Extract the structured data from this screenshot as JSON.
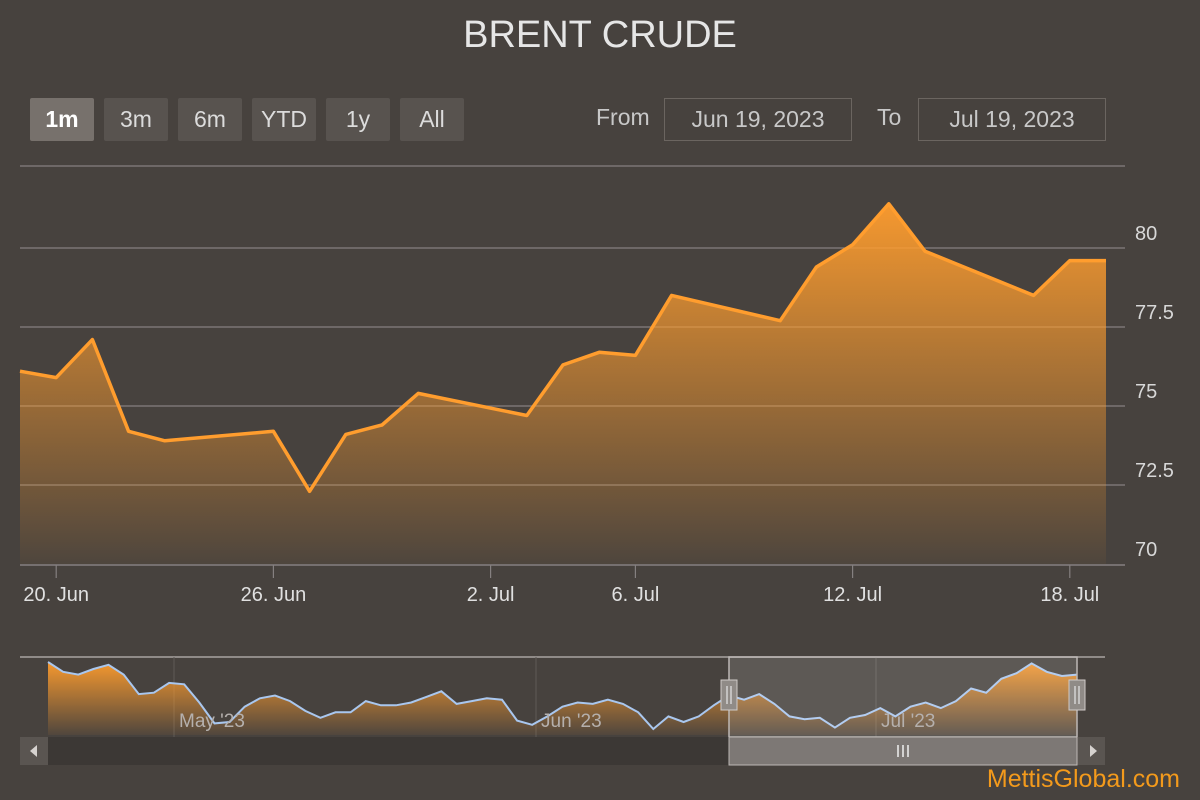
{
  "title": "BRENT CRUDE",
  "range_selector": {
    "buttons": [
      "1m",
      "3m",
      "6m",
      "YTD",
      "1y",
      "All"
    ],
    "active": "1m",
    "from_label": "From",
    "from_value": "Jun 19, 2023",
    "to_label": "To",
    "to_value": "Jul 19, 2023"
  },
  "watermark": "MettisGlobal.com",
  "colors": {
    "background": "#47423e",
    "series_line": "#ff9d2e",
    "navigator_line": "#a9c7ef",
    "grid": "#858080"
  },
  "chart_data": {
    "type": "area",
    "title": "BRENT CRUDE",
    "y_ticks": [
      "70",
      "72.5",
      "75",
      "77.5",
      "80"
    ],
    "ylim": [
      70,
      82.5
    ],
    "x_tick_labels": [
      "20. Jun",
      "26. Jun",
      "2. Jul",
      "6. Jul",
      "12. Jul",
      "18. Jul"
    ],
    "grid": true,
    "series": [
      {
        "x": [
          "2023-06-19",
          "2023-06-20",
          "2023-06-21",
          "2023-06-22",
          "2023-06-23",
          "2023-06-26",
          "2023-06-27",
          "2023-06-28",
          "2023-06-29",
          "2023-06-30",
          "2023-07-03",
          "2023-07-04",
          "2023-07-05",
          "2023-07-06",
          "2023-07-07",
          "2023-07-10",
          "2023-07-11",
          "2023-07-12",
          "2023-07-13",
          "2023-07-14",
          "2023-07-17",
          "2023-07-18",
          "2023-07-19"
        ],
        "values": [
          76.1,
          75.9,
          77.1,
          74.2,
          73.9,
          74.2,
          72.3,
          74.1,
          74.4,
          75.4,
          74.7,
          76.3,
          76.7,
          76.6,
          78.5,
          77.7,
          79.4,
          80.1,
          81.4,
          79.9,
          78.5,
          79.6,
          79.6
        ]
      }
    ]
  },
  "navigator": {
    "labels": [
      "May '23",
      "Jun '23",
      "Jul '23"
    ],
    "values": [
      78.5,
      77.8,
      77.6,
      78.0,
      78.3,
      77.6,
      76.2,
      76.3,
      77.0,
      76.9,
      75.6,
      74.1,
      74.2,
      75.3,
      75.9,
      76.1,
      75.7,
      75.0,
      74.5,
      74.9,
      74.9,
      75.7,
      75.4,
      75.4,
      75.6,
      76.0,
      76.4,
      75.5,
      75.7,
      75.9,
      75.8,
      74.3,
      74.0,
      74.6,
      75.3,
      75.6,
      75.5,
      75.8,
      75.5,
      74.9,
      73.7,
      74.6,
      74.2,
      74.6,
      75.4,
      76.1,
      75.8,
      76.2,
      75.5,
      74.6,
      74.4,
      74.5,
      73.8,
      74.5,
      74.7,
      75.2,
      74.6,
      75.3,
      75.6,
      75.2,
      75.7,
      76.6,
      76.3,
      77.3,
      77.7,
      78.4,
      77.8,
      77.5,
      77.6
    ]
  }
}
